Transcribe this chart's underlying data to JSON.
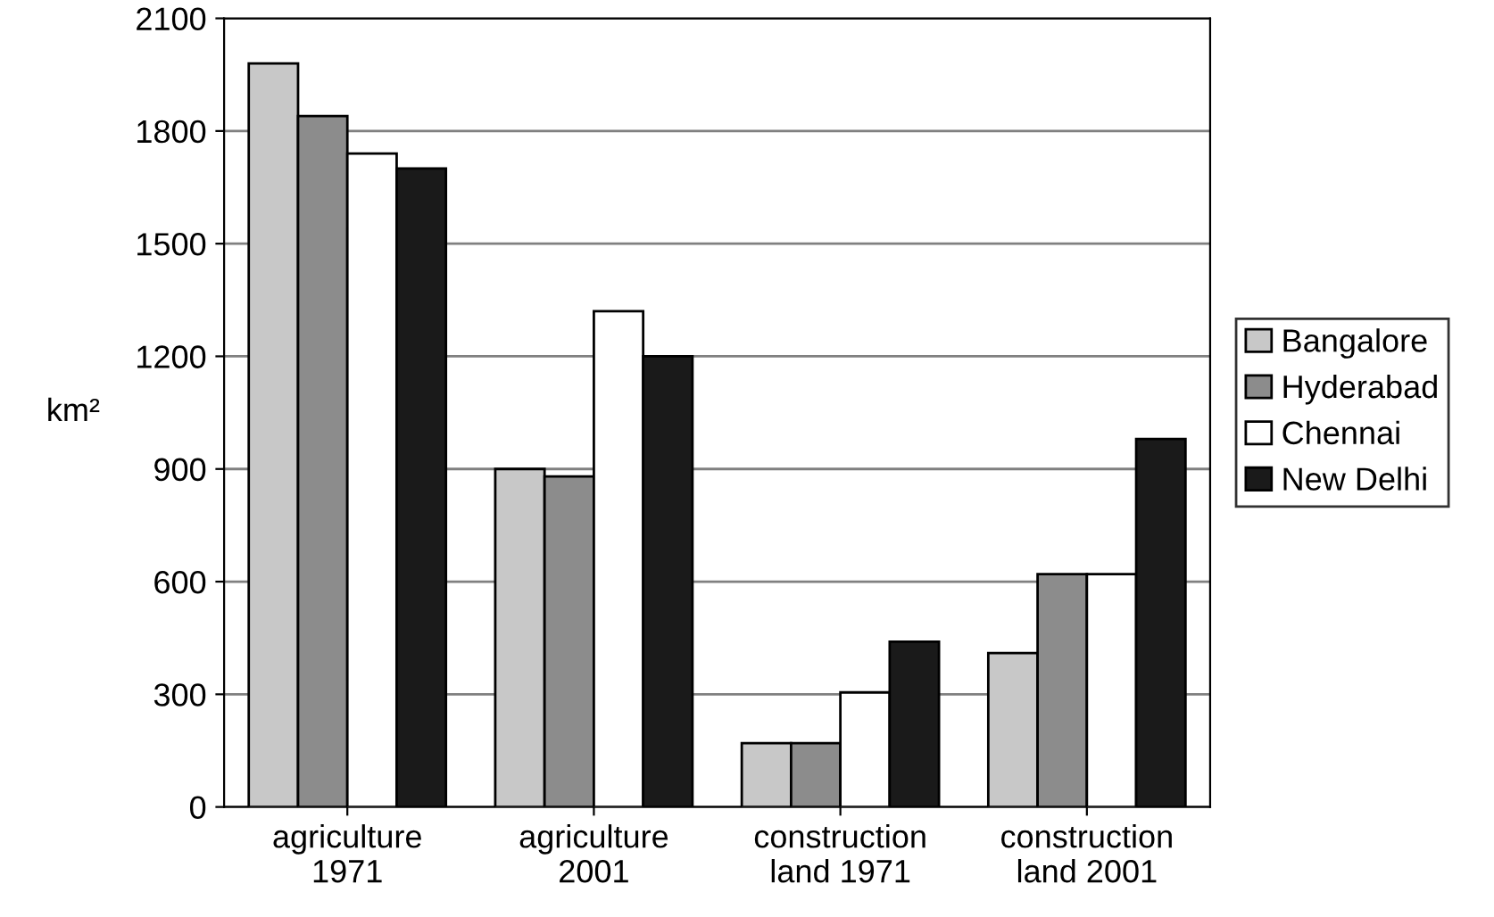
{
  "chart_data": {
    "type": "bar",
    "ylabel": "km²",
    "categories": [
      "agriculture\n1971",
      "agriculture\n2001",
      "construction\nland 1971",
      "construction\nland 2001"
    ],
    "series": [
      {
        "name": "Bangalore",
        "color": "#c8c8c8",
        "values": [
          1980,
          900,
          170,
          410
        ]
      },
      {
        "name": "Hyderabad",
        "color": "#8c8c8c",
        "values": [
          1840,
          880,
          170,
          620
        ]
      },
      {
        "name": "Chennai",
        "color": "#ffffff",
        "values": [
          1740,
          1320,
          305,
          620
        ]
      },
      {
        "name": "New Delhi",
        "color": "#1a1a1a",
        "values": [
          1700,
          1200,
          440,
          980
        ]
      }
    ],
    "ylim": [
      0,
      2100
    ],
    "yticks": [
      0,
      300,
      600,
      900,
      1200,
      1500,
      1800,
      2100
    ],
    "grid": "y",
    "legend": "right"
  }
}
